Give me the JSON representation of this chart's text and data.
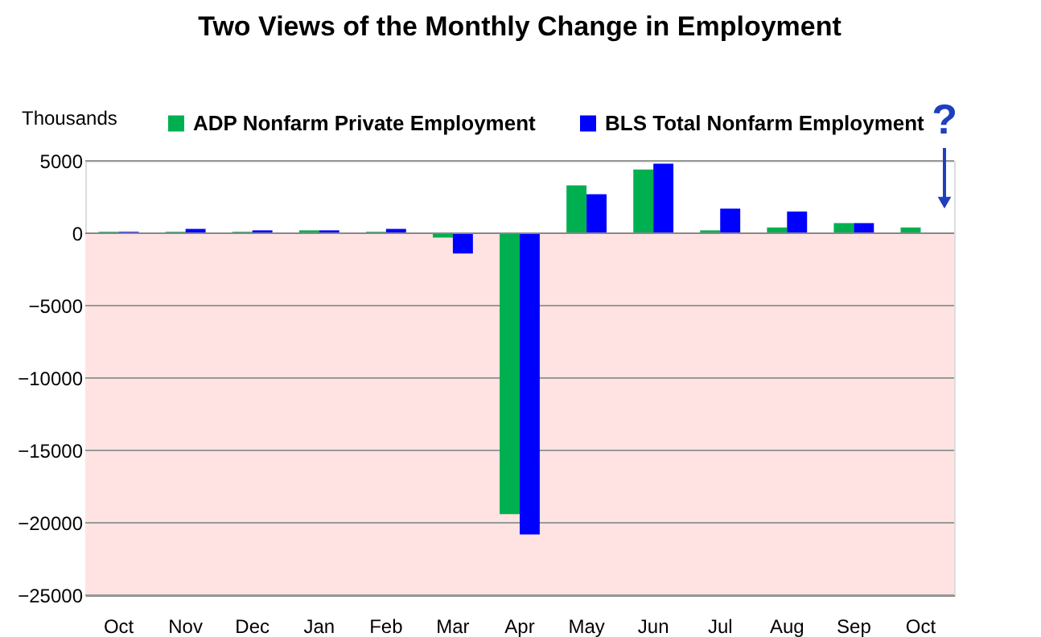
{
  "chart_data": {
    "type": "bar",
    "title": "Two Views of the Monthly Change in Employment",
    "ylabel": "Thousands",
    "categories": [
      "Oct",
      "Nov",
      "Dec",
      "Jan",
      "Feb",
      "Mar",
      "Apr",
      "May",
      "Jun",
      "Jul",
      "Aug",
      "Sep",
      "Oct"
    ],
    "series": [
      {
        "name": "ADP Nonfarm Private Employment",
        "color": "#00b050",
        "values": [
          100,
          100,
          100,
          200,
          100,
          -300,
          -19400,
          3300,
          4400,
          200,
          400,
          700,
          400
        ]
      },
      {
        "name": "BLS Total Nonfarm Employment",
        "color": "#0000ff",
        "values": [
          100,
          300,
          200,
          200,
          300,
          -1400,
          -20800,
          2700,
          4800,
          1700,
          1500,
          700,
          null
        ]
      }
    ],
    "ylim": [
      -25000,
      5000
    ],
    "yticks": [
      -25000,
      -20000,
      -15000,
      -10000,
      -5000,
      0,
      5000
    ],
    "grid": "y",
    "legend": "top",
    "bands": [
      {
        "axis": "y",
        "from": -25000,
        "to": 0,
        "color": "#ffe3e3"
      }
    ],
    "annotations": [
      "?"
    ]
  }
}
